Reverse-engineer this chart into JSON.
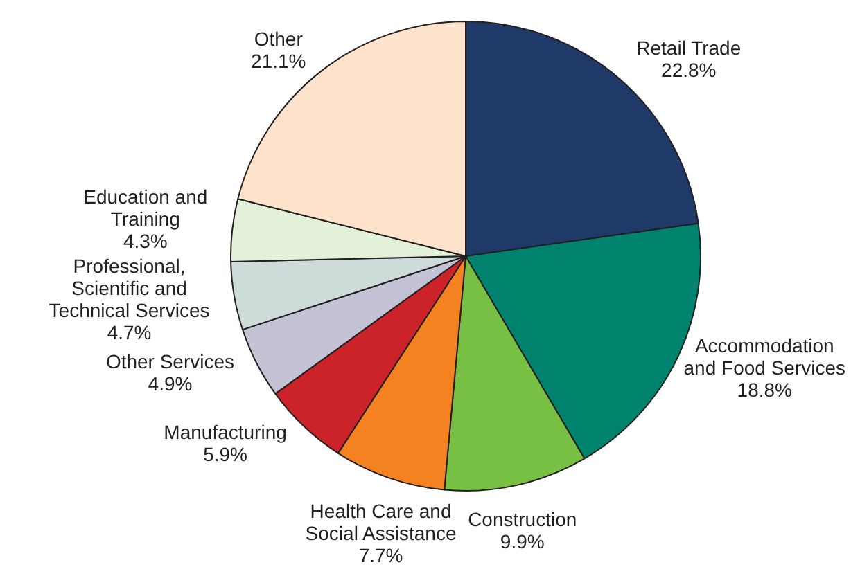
{
  "chart_data": {
    "type": "pie",
    "categories": [
      "Retail Trade",
      "Accommodation and Food Services",
      "Construction",
      "Health Care and Social Assistance",
      "Manufacturing",
      "Other Services",
      "Professional, Scientific and Technical Services",
      "Education and Training",
      "Other"
    ],
    "values": [
      22.8,
      18.8,
      9.9,
      7.7,
      5.9,
      4.9,
      4.7,
      4.3,
      21.1
    ],
    "value_labels": [
      "22.8%",
      "18.8%",
      "9.9%",
      "7.7%",
      "5.9%",
      "4.9%",
      "4.7%",
      "4.3%",
      "21.1%"
    ],
    "colors": [
      "#1f3a68",
      "#00836e",
      "#77c043",
      "#f58220",
      "#cc2229",
      "#c3c3d5",
      "#cddcd8",
      "#e3f0da",
      "#fde3cb"
    ],
    "legend": false
  }
}
